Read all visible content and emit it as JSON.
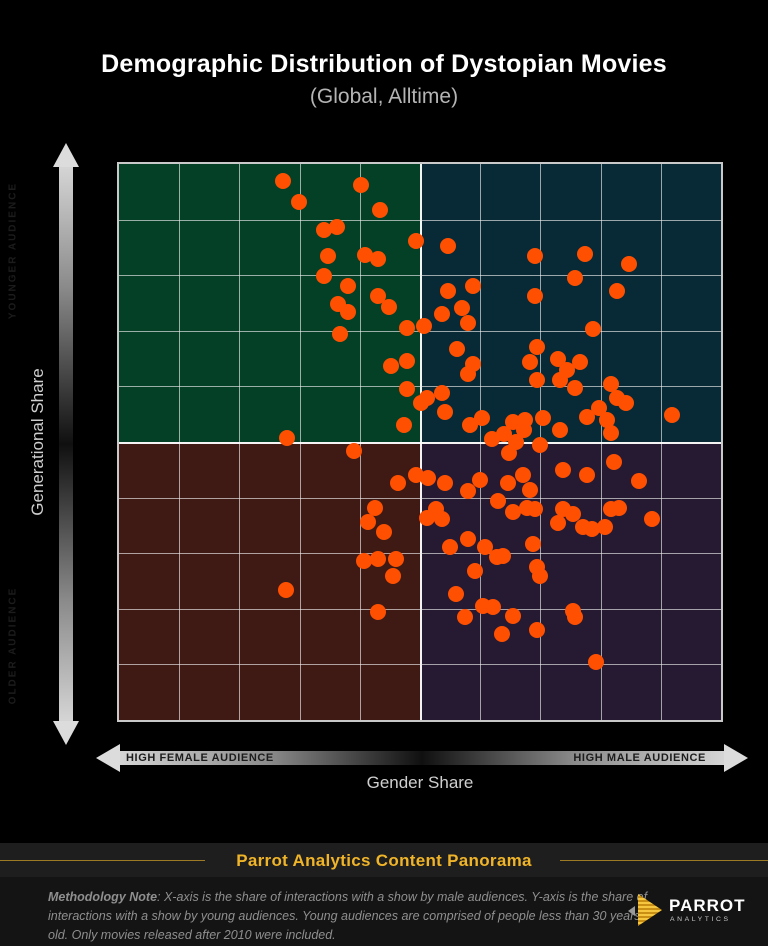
{
  "title": "Demographic Distribution of Dystopian Movies",
  "subtitle": "(Global, Alltime)",
  "y_axis": {
    "title": "Generational Share",
    "top_label": "YOUNGER AUDIENCE",
    "bottom_label": "OLDER AUDIENCE"
  },
  "x_axis": {
    "title": "Gender Share",
    "left_label": "HIGH FEMALE AUDIENCE",
    "right_label": "HIGH MALE AUDIENCE"
  },
  "footer_band": {
    "text": "Parrot Analytics Content Panorama"
  },
  "methodology": {
    "prefix": "Methodology Note",
    "body": ": X-axis is the share of interactions with a show by male audiences. Y-axis is the share of interactions with a show by young audiences. Young audiences are comprised of people less than 30 years old. Only movies released after 2010 were included."
  },
  "logo": {
    "name": "PARROT",
    "sub": "ANALYTICS"
  },
  "colors": {
    "background": "#000000",
    "band_background": "#1E1E1E",
    "bottom_background": "#141414",
    "accent_gold": "#F0B429",
    "dot": "#FE5000",
    "grid": "#EBEBEB",
    "quadrant_top_left": "#044026",
    "quadrant_top_right": "#072A36",
    "quadrant_bottom_left": "#3F1A15",
    "quadrant_bottom_right": "#261A33"
  },
  "chart_data": {
    "type": "scatter",
    "title": "Demographic Distribution of Dystopian Movies (Global, Alltime)",
    "xlabel": "Gender Share (left = high female audience, right = high male audience)",
    "ylabel": "Generational Share (top = younger audience, bottom = older audience)",
    "axis_ranges_shown": "none (no numeric ticks; positions given as percent of plot area, x: 0=left, 100=right; y: 0=top, 100=bottom)",
    "grid": {
      "cols": 10,
      "rows": 10,
      "on": true
    },
    "legend_position": "none",
    "quadrants": [
      {
        "name": "younger-female",
        "position": "top-left",
        "color": "#044026"
      },
      {
        "name": "younger-male",
        "position": "top-right",
        "color": "#072A36"
      },
      {
        "name": "older-female",
        "position": "bottom-left",
        "color": "#3F1A15"
      },
      {
        "name": "older-male",
        "position": "bottom-right",
        "color": "#261A33"
      }
    ],
    "points": [
      [
        27.3,
        3.0
      ],
      [
        40.2,
        3.8
      ],
      [
        29.9,
        6.8
      ],
      [
        43.3,
        8.2
      ],
      [
        36.2,
        11.3
      ],
      [
        34.0,
        11.8
      ],
      [
        34.7,
        16.6
      ],
      [
        40.8,
        16.3
      ],
      [
        43.0,
        17.1
      ],
      [
        49.3,
        13.9
      ],
      [
        34.0,
        20.2
      ],
      [
        38.0,
        22.0
      ],
      [
        36.4,
        25.2
      ],
      [
        38.0,
        26.6
      ],
      [
        43.1,
        23.8
      ],
      [
        44.8,
        25.7
      ],
      [
        36.7,
        30.5
      ],
      [
        47.9,
        29.5
      ],
      [
        50.6,
        29.1
      ],
      [
        45.1,
        36.3
      ],
      [
        47.9,
        35.4
      ],
      [
        47.8,
        40.4
      ],
      [
        50.2,
        43.0
      ],
      [
        47.3,
        47.0
      ],
      [
        27.9,
        49.3
      ],
      [
        39.0,
        51.6
      ],
      [
        54.7,
        14.8
      ],
      [
        69.1,
        16.6
      ],
      [
        77.4,
        16.1
      ],
      [
        75.7,
        20.5
      ],
      [
        84.8,
        18.0
      ],
      [
        69.1,
        23.7
      ],
      [
        82.8,
        22.9
      ],
      [
        54.6,
        22.9
      ],
      [
        58.8,
        22.0
      ],
      [
        57.0,
        25.9
      ],
      [
        53.7,
        27.0
      ],
      [
        57.9,
        28.6
      ],
      [
        78.7,
        29.6
      ],
      [
        56.2,
        33.2
      ],
      [
        58.8,
        35.9
      ],
      [
        58.0,
        37.7
      ],
      [
        69.4,
        33.0
      ],
      [
        68.3,
        35.7
      ],
      [
        69.4,
        38.9
      ],
      [
        72.9,
        35.0
      ],
      [
        74.4,
        37.1
      ],
      [
        76.5,
        35.7
      ],
      [
        73.2,
        38.9
      ],
      [
        75.7,
        40.2
      ],
      [
        81.8,
        39.5
      ],
      [
        82.8,
        42.1
      ],
      [
        84.3,
        43.0
      ],
      [
        53.7,
        41.1
      ],
      [
        51.2,
        42.1
      ],
      [
        54.2,
        44.6
      ],
      [
        79.8,
        43.9
      ],
      [
        77.7,
        45.5
      ],
      [
        81.0,
        46.1
      ],
      [
        91.9,
        45.2
      ],
      [
        58.3,
        47.0
      ],
      [
        60.3,
        45.7
      ],
      [
        65.4,
        46.4
      ],
      [
        67.4,
        46.1
      ],
      [
        70.4,
        45.7
      ],
      [
        73.2,
        47.9
      ],
      [
        81.8,
        48.4
      ],
      [
        46.3,
        57.3
      ],
      [
        49.3,
        55.9
      ],
      [
        42.6,
        61.8
      ],
      [
        41.3,
        64.3
      ],
      [
        44.0,
        66.1
      ],
      [
        51.2,
        63.6
      ],
      [
        40.7,
        71.4
      ],
      [
        43.0,
        71.1
      ],
      [
        46.0,
        71.1
      ],
      [
        45.5,
        74.1
      ],
      [
        27.8,
        76.6
      ],
      [
        43.1,
        80.5
      ],
      [
        54.2,
        57.3
      ],
      [
        57.9,
        58.9
      ],
      [
        51.4,
        56.4
      ],
      [
        60.0,
        56.8
      ],
      [
        67.1,
        55.9
      ],
      [
        64.6,
        57.3
      ],
      [
        68.3,
        58.6
      ],
      [
        73.7,
        55.0
      ],
      [
        77.8,
        55.9
      ],
      [
        82.3,
        53.6
      ],
      [
        86.4,
        57.1
      ],
      [
        63.0,
        60.7
      ],
      [
        65.4,
        62.5
      ],
      [
        67.8,
        61.8
      ],
      [
        69.1,
        62.1
      ],
      [
        73.7,
        62.1
      ],
      [
        72.9,
        64.5
      ],
      [
        75.4,
        63.0
      ],
      [
        77.0,
        65.2
      ],
      [
        78.5,
        65.7
      ],
      [
        80.7,
        65.2
      ],
      [
        81.8,
        62.1
      ],
      [
        83.1,
        61.8
      ],
      [
        88.6,
        63.9
      ],
      [
        52.6,
        62.1
      ],
      [
        53.7,
        63.9
      ],
      [
        55.0,
        68.9
      ],
      [
        57.9,
        67.5
      ],
      [
        60.8,
        68.8
      ],
      [
        62.8,
        70.7
      ],
      [
        63.8,
        70.5
      ],
      [
        68.8,
        68.4
      ],
      [
        69.4,
        72.5
      ],
      [
        69.9,
        74.1
      ],
      [
        59.2,
        73.2
      ],
      [
        55.9,
        77.3
      ],
      [
        57.5,
        81.4
      ],
      [
        60.5,
        79.5
      ],
      [
        62.1,
        79.6
      ],
      [
        65.4,
        81.3
      ],
      [
        63.6,
        84.5
      ],
      [
        69.4,
        83.9
      ],
      [
        75.4,
        80.4
      ],
      [
        75.7,
        81.4
      ],
      [
        79.3,
        89.5
      ],
      [
        66.0,
        50.0
      ],
      [
        64.0,
        48.5
      ],
      [
        62.0,
        49.5
      ],
      [
        70.0,
        50.5
      ],
      [
        67.2,
        47.8
      ],
      [
        64.8,
        52.0
      ]
    ]
  }
}
